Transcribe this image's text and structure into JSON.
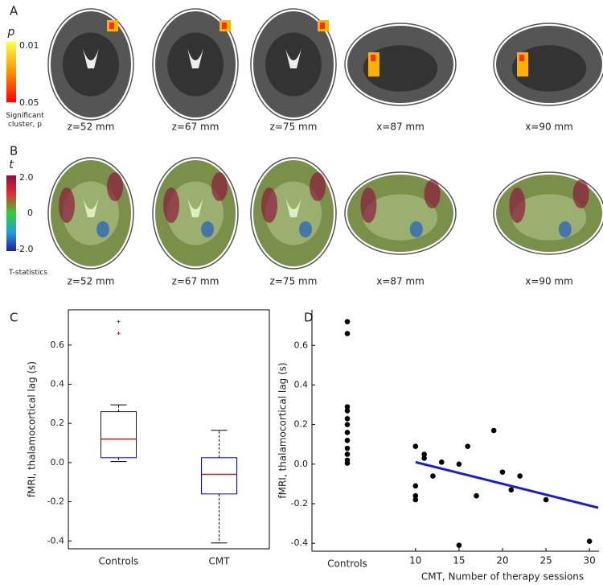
{
  "panel_labels": [
    "A",
    "B",
    "C",
    "D"
  ],
  "panel_a": {
    "slice_labels": [
      "z=52 mm",
      "z=67 mm",
      "z=75 mm",
      "x=87 mm",
      "x=90 mm"
    ],
    "colorbar": {
      "symbol": "p",
      "top": "0.01",
      "bottom": "0.05",
      "caption": "Significant cluster, p"
    }
  },
  "panel_b": {
    "slice_labels": [
      "z=52 mm",
      "z=67 mm",
      "z=75 mm",
      "x=87 mm",
      "x=90 mm"
    ],
    "colorbar": {
      "symbol": "t",
      "top": "2.0",
      "middle": "0",
      "bottom": "-2.0",
      "caption": "T-statistics"
    }
  },
  "chart_data": [
    {
      "type": "box",
      "ylabel": "fMRI, thalamocortical lag (s)",
      "categories": [
        "Controls",
        "CMT"
      ],
      "boxes": [
        {
          "min": 0.005,
          "q1": 0.025,
          "median": 0.12,
          "q3": 0.26,
          "max": 0.295,
          "outliers": [
            0.72,
            0.66
          ]
        },
        {
          "min": -0.41,
          "q1": -0.16,
          "median": -0.06,
          "q3": 0.025,
          "max": 0.165,
          "outliers": []
        }
      ],
      "box_color": "#0000ff",
      "median_color": "#ff0000",
      "outlier_color": "#ff0000",
      "ylim": [
        -0.44,
        0.78
      ],
      "yticks": [
        -0.4,
        -0.2,
        {
          "value": 0,
          "label": "0.0"
        },
        0.2,
        0.4,
        0.6
      ]
    },
    {
      "type": "scatter",
      "ylabel": "fMRI, thalamocortical lag (s)",
      "xlabel": "CMT, Number of therapy sessions",
      "categories": [
        "Controls"
      ],
      "category_values": [
        0.72,
        0.66,
        0.29,
        0.27,
        0.23,
        0.2,
        0.16,
        0.12,
        0.08,
        0.05,
        0.02,
        0.005
      ],
      "x": [
        10,
        10,
        10,
        10,
        11,
        11,
        12,
        13,
        15,
        15,
        16,
        17,
        19,
        20,
        21,
        22,
        25,
        30
      ],
      "values": [
        0.09,
        -0.11,
        -0.16,
        -0.18,
        0.05,
        0.03,
        -0.06,
        0.01,
        0.0,
        -0.41,
        0.09,
        -0.16,
        0.17,
        -0.04,
        -0.13,
        -0.06,
        -0.18,
        -0.39
      ],
      "color": "#000000",
      "fit": {
        "x": [
          10,
          31
        ],
        "values": [
          0.01,
          -0.22
        ],
        "color": "#1a1adb"
      },
      "xlim": [
        9,
        31
      ],
      "xticks": [
        10,
        15,
        20,
        25,
        30
      ],
      "ylim": [
        -0.44,
        0.78
      ],
      "yticks": [
        -0.4,
        -0.2,
        {
          "value": 0,
          "label": "0.0"
        },
        0.2,
        0.4,
        0.6
      ]
    }
  ]
}
